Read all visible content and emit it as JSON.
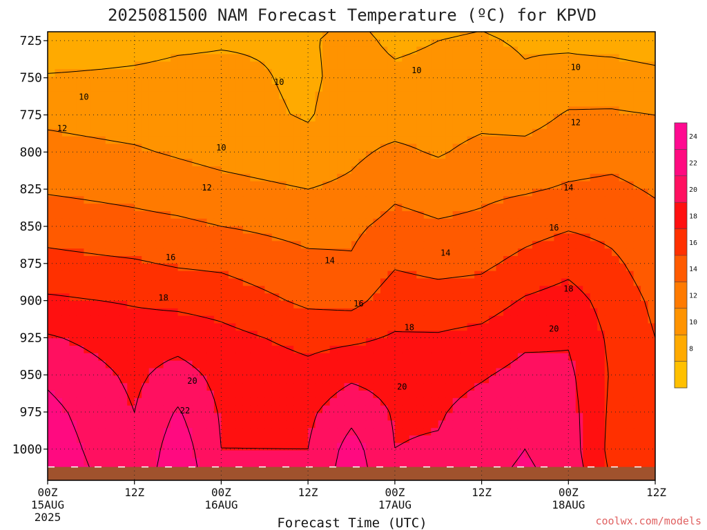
{
  "credit": "coolwx.com/models",
  "chart_data": {
    "type": "heatmap",
    "title": "2025081500 NAM Forecast Temperature (ºC) for KPVD",
    "xlabel": "Forecast Time (UTC)",
    "ylabel": "",
    "units": "ºC",
    "x_ticks": [
      {
        "hour": 0,
        "line1": "00Z",
        "line2": "15AUG",
        "line3": "2025"
      },
      {
        "hour": 12,
        "line1": "12Z"
      },
      {
        "hour": 24,
        "line1": "00Z",
        "line2": "16AUG"
      },
      {
        "hour": 36,
        "line1": "12Z"
      },
      {
        "hour": 48,
        "line1": "00Z",
        "line2": "17AUG"
      },
      {
        "hour": 60,
        "line1": "12Z"
      },
      {
        "hour": 72,
        "line1": "00Z",
        "line2": "18AUG"
      },
      {
        "hour": 84,
        "line1": "12Z"
      }
    ],
    "xlim": [
      0,
      84
    ],
    "y_ticks": [
      725,
      750,
      775,
      800,
      825,
      850,
      875,
      900,
      925,
      950,
      975,
      1000
    ],
    "ylim": [
      719,
      1021
    ],
    "y_inverted": true,
    "surface_pressure_hpa": 1012,
    "grid": true,
    "colorbar": {
      "levels": [
        8,
        10,
        12,
        14,
        16,
        18,
        20,
        22,
        24
      ],
      "colors": [
        "#ffc000",
        "#ffaa00",
        "#ff9300",
        "#ff7a00",
        "#ff5a00",
        "#ff3000",
        "#ff1010",
        "#ff1060",
        "#ff0a80",
        "#ff0a90"
      ]
    },
    "contour_levels": [
      10,
      12,
      14,
      16,
      18,
      20,
      22
    ],
    "pressure_levels": [
      725,
      750,
      775,
      800,
      825,
      850,
      875,
      900,
      925,
      950,
      975,
      1000
    ],
    "rows": [
      {
        "hour": 0,
        "temps": [
          8.5,
          10.2,
          11.6,
          12.6,
          13.8,
          15.2,
          16.6,
          18.3,
          20.2,
          21.6,
          22.6,
          23.2
        ]
      },
      {
        "hour": 12,
        "temps": [
          9.2,
          10.4,
          11.2,
          12.2,
          13.4,
          14.6,
          16.2,
          17.8,
          19.0,
          19.6,
          20.0,
          20.2
        ]
      },
      {
        "hour": 18,
        "temps": [
          9.6,
          10.6,
          11.0,
          11.8,
          13.0,
          14.4,
          15.8,
          17.5,
          19.2,
          20.8,
          22.2,
          23.2
        ]
      },
      {
        "hour": 24,
        "temps": [
          9.8,
          10.6,
          10.8,
          11.4,
          12.6,
          14.0,
          15.6,
          17.2,
          18.6,
          19.4,
          19.8,
          20.0
        ]
      },
      {
        "hour": 36,
        "temps": [
          9.8,
          9.6,
          9.8,
          10.8,
          12.0,
          13.4,
          14.4,
          15.6,
          17.4,
          18.6,
          19.6,
          20.0
        ]
      },
      {
        "hour": 42,
        "temps": [
          10.6,
          10.8,
          11.2,
          11.6,
          12.4,
          13.6,
          14.2,
          15.4,
          17.6,
          19.6,
          21.4,
          22.8
        ]
      },
      {
        "hour": 48,
        "temps": [
          9.6,
          10.4,
          11.0,
          12.4,
          13.6,
          14.6,
          15.8,
          17.0,
          18.2,
          19.2,
          19.8,
          20.0
        ]
      },
      {
        "hour": 54,
        "temps": [
          10.0,
          10.6,
          11.0,
          11.8,
          13.2,
          14.2,
          15.4,
          16.8,
          18.2,
          19.2,
          19.8,
          20.2
        ]
      },
      {
        "hour": 60,
        "temps": [
          10.2,
          10.8,
          11.4,
          12.6,
          13.6,
          14.4,
          15.6,
          17.0,
          18.6,
          19.8,
          20.8,
          21.2
        ]
      },
      {
        "hour": 66,
        "temps": [
          9.8,
          10.2,
          11.2,
          12.6,
          13.8,
          15.2,
          16.6,
          18.2,
          19.6,
          20.6,
          21.6,
          22.0
        ]
      },
      {
        "hour": 72,
        "temps": [
          9.6,
          10.8,
          12.2,
          13.2,
          14.2,
          15.8,
          17.4,
          18.8,
          19.8,
          20.4,
          20.8,
          21.0
        ]
      },
      {
        "hour": 78,
        "temps": [
          9.2,
          11.0,
          12.2,
          13.4,
          14.4,
          15.4,
          16.4,
          17.2,
          17.6,
          17.8,
          17.6,
          17.4
        ]
      },
      {
        "hour": 84,
        "temps": [
          8.8,
          10.6,
          12.0,
          13.0,
          13.8,
          14.6,
          15.0,
          15.6,
          16.0,
          16.2,
          16.4,
          16.6
        ]
      }
    ],
    "contour_labels": [
      {
        "text": "10",
        "hour": 5,
        "p": 763
      },
      {
        "text": "10",
        "hour": 32,
        "p": 753
      },
      {
        "text": "10",
        "hour": 24,
        "p": 797
      },
      {
        "text": "10",
        "hour": 51,
        "p": 745
      },
      {
        "text": "10",
        "hour": 73,
        "p": 743
      },
      {
        "text": "12",
        "hour": 2,
        "p": 784
      },
      {
        "text": "12",
        "hour": 22,
        "p": 824
      },
      {
        "text": "12",
        "hour": 73,
        "p": 780
      },
      {
        "text": "14",
        "hour": 39,
        "p": 873
      },
      {
        "text": "14",
        "hour": 55,
        "p": 868
      },
      {
        "text": "14",
        "hour": 72,
        "p": 824
      },
      {
        "text": "16",
        "hour": 17,
        "p": 871
      },
      {
        "text": "16",
        "hour": 43,
        "p": 902
      },
      {
        "text": "16",
        "hour": 70,
        "p": 851
      },
      {
        "text": "18",
        "hour": 16,
        "p": 898
      },
      {
        "text": "18",
        "hour": 50,
        "p": 918
      },
      {
        "text": "18",
        "hour": 72,
        "p": 892
      },
      {
        "text": "20",
        "hour": 20,
        "p": 954
      },
      {
        "text": "20",
        "hour": 49,
        "p": 958
      },
      {
        "text": "20",
        "hour": 70,
        "p": 919
      },
      {
        "text": "22",
        "hour": 19,
        "p": 974
      }
    ]
  }
}
